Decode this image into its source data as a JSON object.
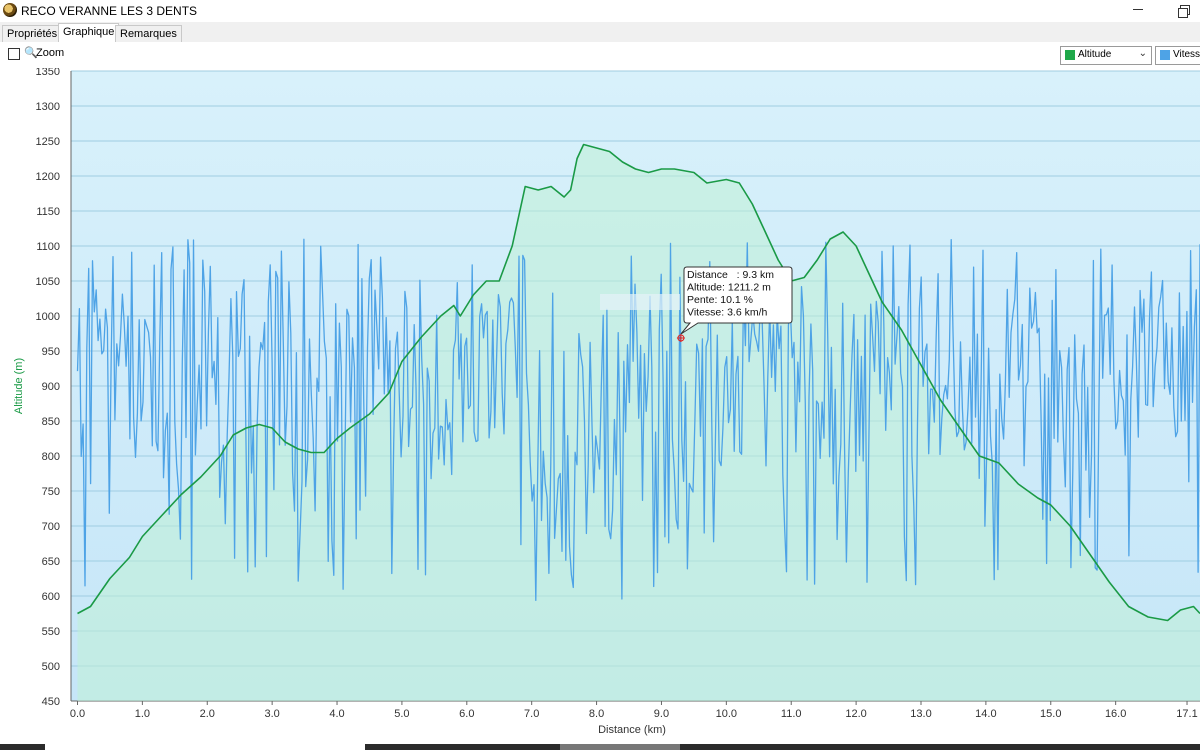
{
  "window": {
    "title": "RECO VERANNE LES 3 DENTS"
  },
  "tabs": [
    {
      "label": "Propriétés",
      "active": false
    },
    {
      "label": "Graphique",
      "active": true
    },
    {
      "label": "Remarques",
      "active": false
    }
  ],
  "toolbar": {
    "zoom_label": "Zoom",
    "zoom_checked": false,
    "series_selectors": [
      {
        "label": "Altitude",
        "color": "#1fa84a"
      },
      {
        "label": "Vitesse",
        "color": "#4ea3e6"
      }
    ]
  },
  "colors": {
    "altitude_line": "#1a9a46",
    "speed_line": "#4ea3e6",
    "plot_bg_top": "#d8f1fb",
    "plot_bg_bottom": "#c6e6f8",
    "grid": "#9fcde2"
  },
  "tooltip": {
    "lines": [
      "Distance   : 9.3 km",
      "Altitude: 1211.2 m",
      "Pente: 10.1 %",
      "Vitesse: 3.6 km/h"
    ]
  },
  "chart_data": {
    "type": "line",
    "xlabel": "Distance    (km)",
    "ylabel": "Altitude  (m)",
    "xlim": [
      -0.1,
      17.3
    ],
    "ylim": [
      450,
      1350
    ],
    "x_ticks": [
      "0.0",
      "1.0",
      "2.0",
      "3.0",
      "4.0",
      "5.0",
      "6.0",
      "7.0",
      "8.0",
      "9.0",
      "10.0",
      "11.0",
      "12.0",
      "13.0",
      "14.0",
      "15.0",
      "16.0",
      "17.1"
    ],
    "x_tick_values": [
      0,
      1,
      2,
      3,
      4,
      5,
      6,
      7,
      8,
      9,
      10,
      11,
      12,
      13,
      14,
      15,
      16,
      17.1
    ],
    "y_ticks": [
      450,
      500,
      550,
      600,
      650,
      700,
      750,
      800,
      850,
      900,
      950,
      1000,
      1050,
      1100,
      1150,
      1200,
      1250,
      1300,
      1350
    ],
    "grid": true,
    "legend": "top-right dropdowns",
    "series": [
      {
        "name": "Altitude",
        "x": [
          0,
          0.2,
          0.5,
          0.8,
          1.0,
          1.3,
          1.6,
          1.9,
          2.2,
          2.4,
          2.6,
          2.8,
          3.0,
          3.2,
          3.4,
          3.6,
          3.8,
          4.0,
          4.2,
          4.5,
          4.8,
          5.0,
          5.3,
          5.6,
          5.8,
          5.9,
          6.1,
          6.3,
          6.5,
          6.7,
          6.9,
          7.1,
          7.3,
          7.5,
          7.6,
          7.7,
          7.8,
          8.0,
          8.2,
          8.4,
          8.6,
          8.8,
          9.0,
          9.2,
          9.5,
          9.7,
          10.0,
          10.2,
          10.4,
          10.6,
          10.8,
          11.0,
          11.2,
          11.4,
          11.6,
          11.8,
          12.0,
          12.2,
          12.4,
          12.7,
          13.0,
          13.3,
          13.6,
          13.9,
          14.2,
          14.5,
          14.8,
          15.0,
          15.3,
          15.6,
          15.9,
          16.2,
          16.5,
          16.8,
          17.0,
          17.2,
          17.3
        ],
        "values": [
          575,
          585,
          625,
          655,
          685,
          715,
          745,
          770,
          800,
          830,
          840,
          845,
          840,
          820,
          810,
          805,
          805,
          825,
          840,
          860,
          890,
          935,
          970,
          1000,
          1015,
          1000,
          1030,
          1050,
          1050,
          1100,
          1185,
          1180,
          1185,
          1170,
          1180,
          1225,
          1245,
          1240,
          1235,
          1220,
          1210,
          1205,
          1210,
          1210,
          1205,
          1190,
          1195,
          1190,
          1160,
          1120,
          1080,
          1050,
          1055,
          1080,
          1110,
          1120,
          1100,
          1060,
          1020,
          980,
          930,
          880,
          840,
          800,
          790,
          760,
          740,
          730,
          700,
          660,
          620,
          585,
          570,
          565,
          580,
          585,
          575
        ]
      },
      {
        "name": "Vitesse",
        "axis": "hidden secondary",
        "x_range": [
          0,
          17.3
        ],
        "pattern": "noisy spikes 560-1120 with dips around 2.6, 3.0, 7.0-8.4, 9.0-9.5, 11.8"
      }
    ]
  }
}
